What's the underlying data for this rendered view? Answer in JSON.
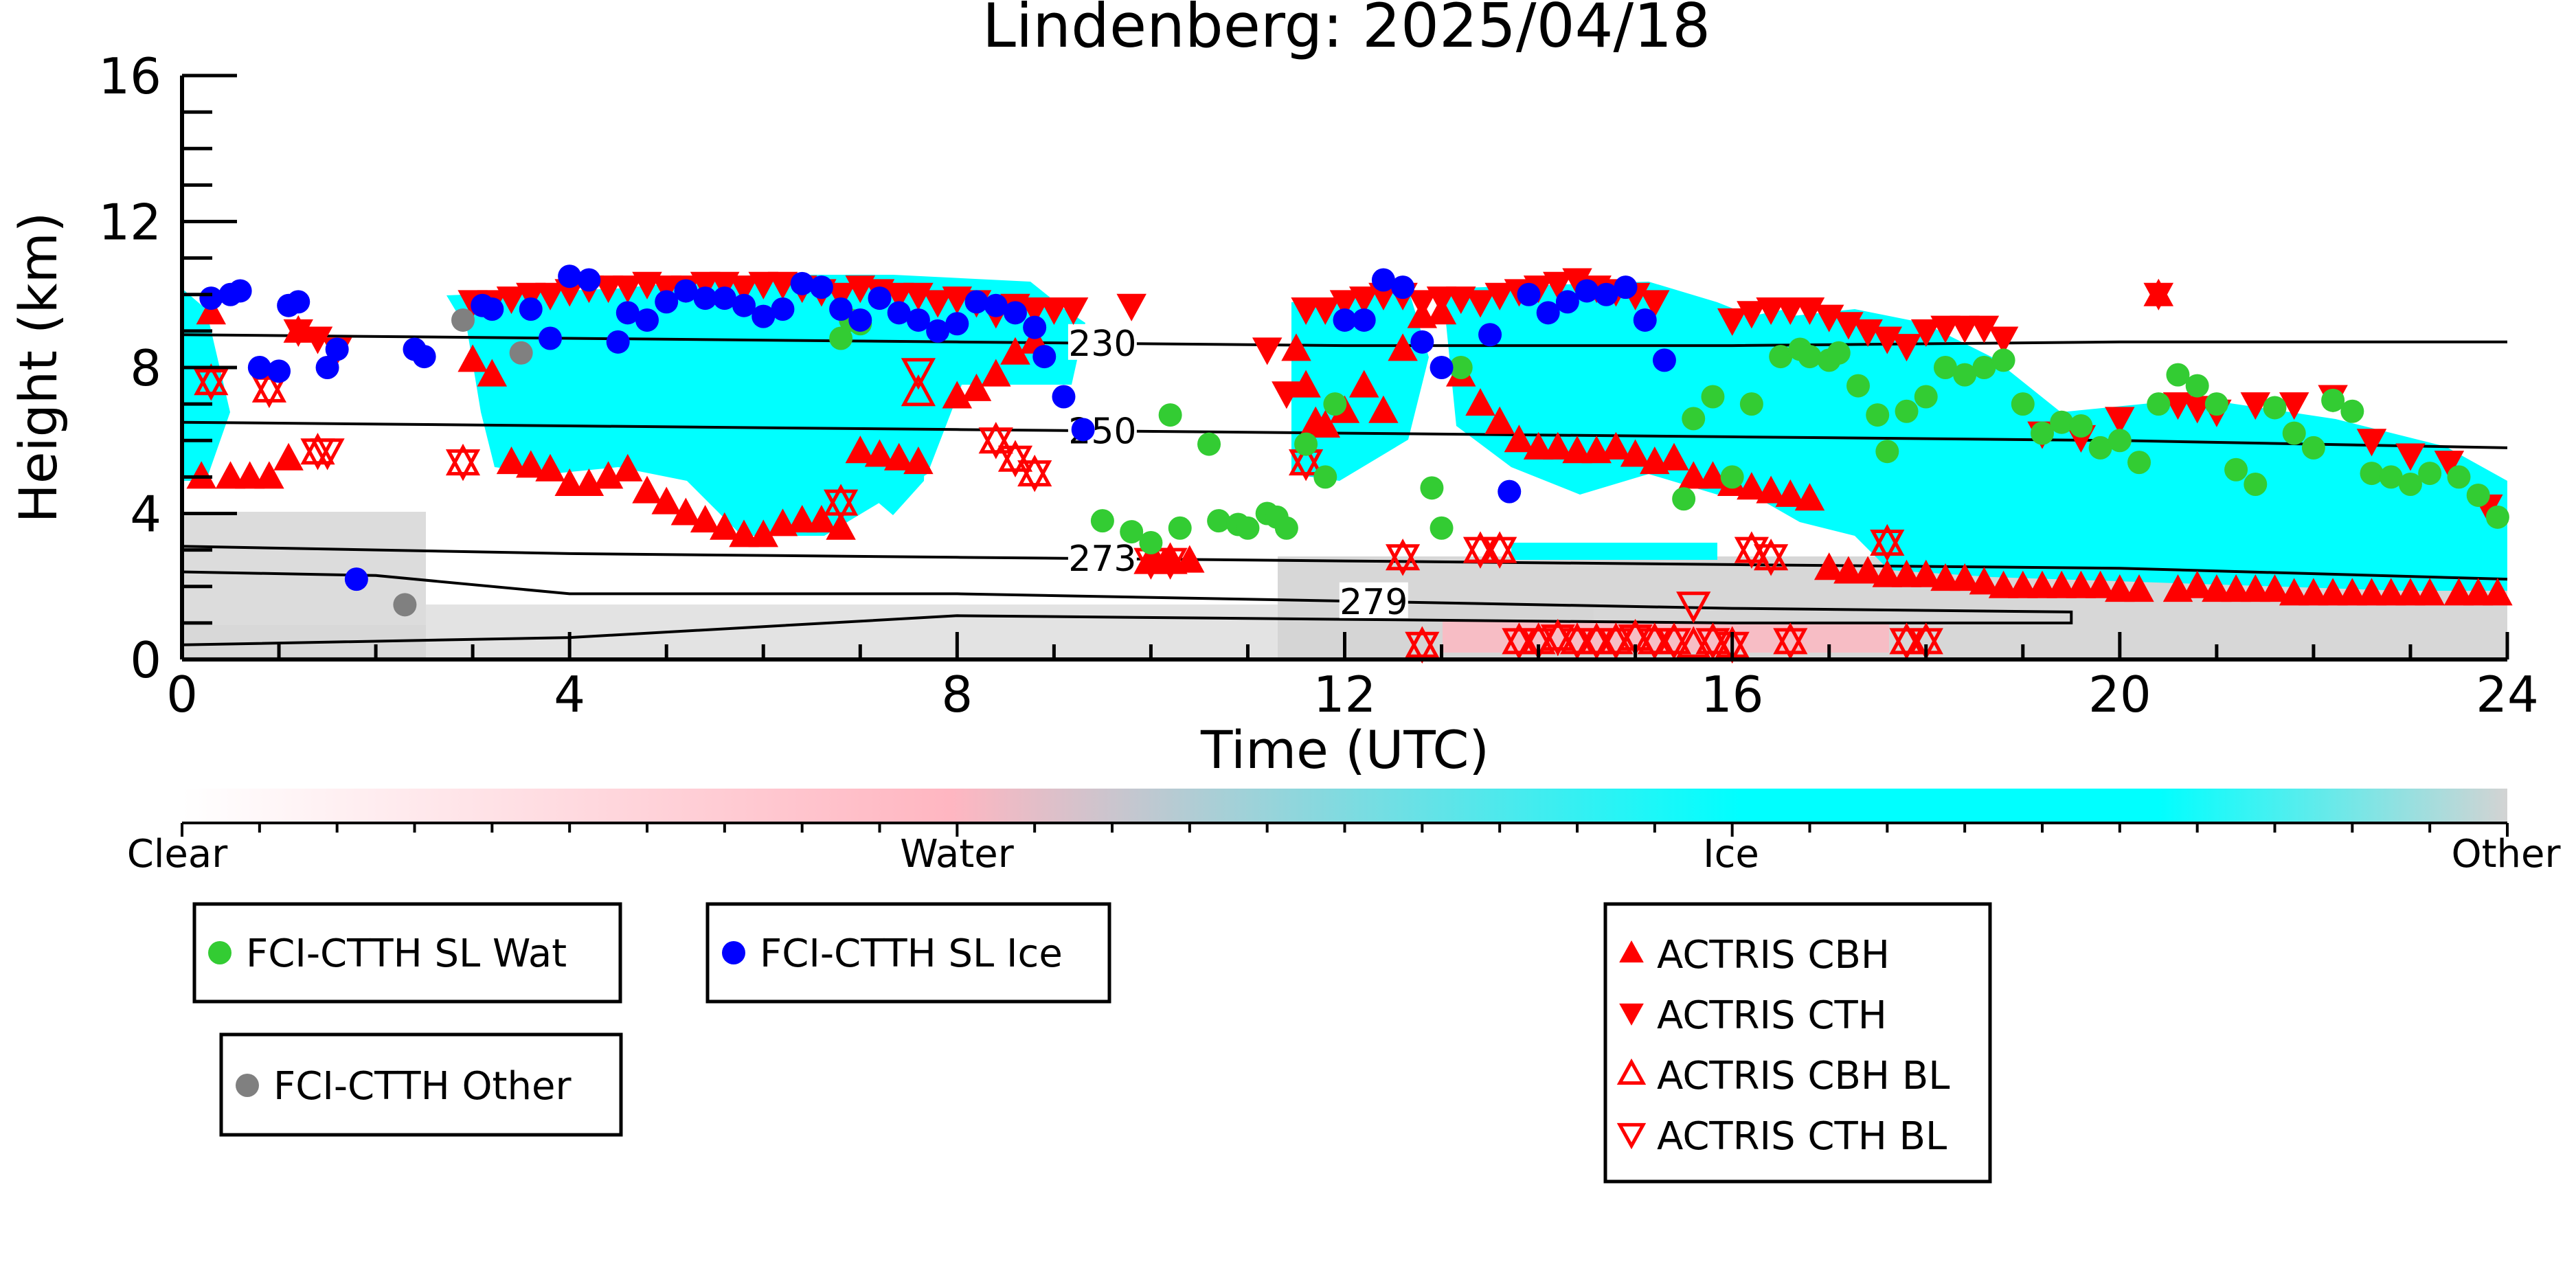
{
  "chart_data": {
    "type": "scatter",
    "title": "Lindenberg: 2025/04/18",
    "xlabel": "Time (UTC)",
    "ylabel": "Height (km)",
    "xlim": [
      0,
      24
    ],
    "ylim": [
      0,
      16
    ],
    "xticks": [
      0,
      4,
      8,
      12,
      16,
      20,
      24
    ],
    "yticks": [
      0,
      4,
      8,
      12,
      16
    ],
    "grid": false,
    "colorbar": {
      "labels": [
        "Clear",
        "Water",
        "Ice",
        "Other"
      ],
      "colors": [
        "#ffffff",
        "#ffb6c1",
        "#00ffff",
        "#d3d3d3"
      ]
    },
    "contours": [
      {
        "label": "230",
        "x": [
          0,
          4,
          8,
          12,
          16,
          20,
          24
        ],
        "y": [
          8.9,
          8.8,
          8.7,
          8.6,
          8.6,
          8.7,
          8.7
        ],
        "label_x": 9.5
      },
      {
        "label": "250",
        "x": [
          0,
          4,
          8,
          12,
          16,
          20,
          24
        ],
        "y": [
          6.5,
          6.4,
          6.3,
          6.2,
          6.1,
          6.0,
          5.8
        ],
        "label_x": 9.5
      },
      {
        "label": "273",
        "x": [
          0,
          4,
          8,
          12,
          16,
          20,
          24
        ],
        "y": [
          3.1,
          2.9,
          2.8,
          2.7,
          2.6,
          2.5,
          2.2
        ],
        "label_x": 9.5
      },
      {
        "label": "279",
        "x": [
          0,
          2,
          4,
          8,
          12,
          16,
          19.5,
          19.5,
          16,
          12,
          8,
          4,
          0
        ],
        "y": [
          2.4,
          2.3,
          1.8,
          1.8,
          1.6,
          1.4,
          1.3,
          1.0,
          1.0,
          1.1,
          1.2,
          0.6,
          0.4
        ],
        "label_x": 12.3
      }
    ],
    "series": [
      {
        "name": "FCI-CTTH SL Wat",
        "marker": "circle",
        "color": "#33cc33",
        "x": [
          6.8,
          6.9,
          7.0,
          9.5,
          9.8,
          10.0,
          10.2,
          10.3,
          10.6,
          10.7,
          10.9,
          11.0,
          11.2,
          11.3,
          11.4,
          11.6,
          11.8,
          11.9,
          12.9,
          13.0,
          13.2,
          15.5,
          15.6,
          15.8,
          16.0,
          16.2,
          16.5,
          16.7,
          16.8,
          17.0,
          17.1,
          17.3,
          17.5,
          17.6,
          17.8,
          18.0,
          18.2,
          18.4,
          18.6,
          18.8,
          19.0,
          19.2,
          19.4,
          19.6,
          19.8,
          20.0,
          20.2,
          20.4,
          20.6,
          20.8,
          21.0,
          21.2,
          21.4,
          21.6,
          21.8,
          22.0,
          22.2,
          22.4,
          22.6,
          22.8,
          23.0,
          23.2,
          23.5,
          23.7,
          23.9
        ],
        "y": [
          8.8,
          9.3,
          9.2,
          3.8,
          3.5,
          3.2,
          6.7,
          3.6,
          5.9,
          3.8,
          3.7,
          3.6,
          4.0,
          3.9,
          3.6,
          5.9,
          5.0,
          7.0,
          4.7,
          3.6,
          8.0,
          4.4,
          6.6,
          7.2,
          5.0,
          7.0,
          8.3,
          8.5,
          8.3,
          8.2,
          8.4,
          7.5,
          6.7,
          5.7,
          6.8,
          7.2,
          8.0,
          7.8,
          8.0,
          8.2,
          7.0,
          6.2,
          6.5,
          6.4,
          5.8,
          6.0,
          5.4,
          7.0,
          7.8,
          7.5,
          7.0,
          5.2,
          4.8,
          6.9,
          6.2,
          5.8,
          7.1,
          6.8,
          5.1,
          5.0,
          4.8,
          5.1,
          5.0,
          4.5,
          3.9
        ]
      },
      {
        "name": "FCI-CTTH SL Ice",
        "marker": "circle",
        "color": "#0000ff",
        "x": [
          0.3,
          0.5,
          0.6,
          0.8,
          1.0,
          1.1,
          1.2,
          1.5,
          1.6,
          1.8,
          2.4,
          2.5,
          3.1,
          3.2,
          3.6,
          3.8,
          4.0,
          4.2,
          4.5,
          4.6,
          4.8,
          5.0,
          5.2,
          5.4,
          5.6,
          5.8,
          6.0,
          6.2,
          6.4,
          6.6,
          6.8,
          7.0,
          7.2,
          7.4,
          7.6,
          7.8,
          8.0,
          8.2,
          8.4,
          8.6,
          8.8,
          8.9,
          9.1,
          9.3,
          12.0,
          12.2,
          12.4,
          12.6,
          12.8,
          13.0,
          13.5,
          13.7,
          13.9,
          14.1,
          14.3,
          14.5,
          14.7,
          14.9,
          15.1,
          15.3
        ],
        "y": [
          9.9,
          10.0,
          10.1,
          8.0,
          7.9,
          9.7,
          9.8,
          8.0,
          8.5,
          2.2,
          8.5,
          8.3,
          9.7,
          9.6,
          9.6,
          8.8,
          10.5,
          10.4,
          8.7,
          9.5,
          9.3,
          9.8,
          10.1,
          9.9,
          9.9,
          9.7,
          9.4,
          9.6,
          10.3,
          10.2,
          9.6,
          9.3,
          9.9,
          9.5,
          9.3,
          9.0,
          9.2,
          9.8,
          9.7,
          9.5,
          9.1,
          8.3,
          7.2,
          6.3,
          9.3,
          9.3,
          10.4,
          10.2,
          8.7,
          8.0,
          8.9,
          4.6,
          10.0,
          9.5,
          9.8,
          10.1,
          10.0,
          10.2,
          9.3,
          8.2
        ]
      },
      {
        "name": "FCI-CTTH Other",
        "marker": "circle",
        "color": "#808080",
        "x": [
          2.3,
          2.9,
          3.5
        ],
        "y": [
          1.5,
          9.3,
          8.4
        ]
      },
      {
        "name": "ACTRIS CBH",
        "marker": "triangle-up",
        "color": "#ff0000",
        "x": [
          0.2,
          0.3,
          0.5,
          0.7,
          0.9,
          1.1,
          1.2,
          3.0,
          3.2,
          3.4,
          3.6,
          3.8,
          4.0,
          4.2,
          4.4,
          4.6,
          4.8,
          5.0,
          5.2,
          5.4,
          5.6,
          5.8,
          6.0,
          6.2,
          6.4,
          6.6,
          6.8,
          7.0,
          7.2,
          7.4,
          7.6,
          8.0,
          8.2,
          8.4,
          8.6,
          8.8,
          10.0,
          10.2,
          10.4,
          11.5,
          11.6,
          11.7,
          11.8,
          12.0,
          12.2,
          12.4,
          12.6,
          12.8,
          13.0,
          13.2,
          13.4,
          13.6,
          13.8,
          14.0,
          14.2,
          14.4,
          14.6,
          14.8,
          15.0,
          15.2,
          15.4,
          15.6,
          15.8,
          16.0,
          16.2,
          16.4,
          16.6,
          16.8,
          17.0,
          17.2,
          17.4,
          17.6,
          17.8,
          18.0,
          18.2,
          18.4,
          18.6,
          18.8,
          19.0,
          19.2,
          19.4,
          19.6,
          19.8,
          20.0,
          20.2,
          20.4,
          20.6,
          20.8,
          21.0,
          21.2,
          21.4,
          21.6,
          21.8,
          22.0,
          22.2,
          22.4,
          22.6,
          22.8,
          23.0,
          23.2,
          23.5,
          23.7,
          23.9
        ],
        "y": [
          5.0,
          9.5,
          5.0,
          5.0,
          5.0,
          5.5,
          9.0,
          8.2,
          7.8,
          5.4,
          5.3,
          5.2,
          4.8,
          4.8,
          5.0,
          5.2,
          4.6,
          4.3,
          4.0,
          3.8,
          3.6,
          3.4,
          3.4,
          3.7,
          3.8,
          3.8,
          3.6,
          5.7,
          5.6,
          5.5,
          5.4,
          7.2,
          7.4,
          7.8,
          8.4,
          8.7,
          2.7,
          2.7,
          2.7,
          8.5,
          7.5,
          6.5,
          6.4,
          6.8,
          7.5,
          6.8,
          8.5,
          9.4,
          9.5,
          7.8,
          7.0,
          6.5,
          6.0,
          5.8,
          5.8,
          5.7,
          5.7,
          5.8,
          5.6,
          5.4,
          5.5,
          5.0,
          5.0,
          4.8,
          4.7,
          4.6,
          4.5,
          4.4,
          2.5,
          2.4,
          2.4,
          2.3,
          2.3,
          2.3,
          2.2,
          2.2,
          2.1,
          2.0,
          2.0,
          2.0,
          2.0,
          2.0,
          2.0,
          1.9,
          1.9,
          10.0,
          1.9,
          2.0,
          1.9,
          1.9,
          1.9,
          1.9,
          1.8,
          1.8,
          1.8,
          1.8,
          1.8,
          1.8,
          1.8,
          1.8,
          1.8,
          1.8,
          1.8
        ]
      },
      {
        "name": "ACTRIS CTH",
        "marker": "triangle-down",
        "color": "#ff0000",
        "x": [
          1.2,
          1.4,
          1.6,
          3.0,
          3.2,
          3.4,
          3.6,
          3.8,
          4.0,
          4.2,
          4.4,
          4.6,
          4.8,
          5.0,
          5.2,
          5.4,
          5.6,
          5.8,
          6.0,
          6.2,
          6.4,
          6.6,
          6.8,
          7.0,
          7.2,
          7.4,
          7.6,
          7.8,
          8.0,
          8.2,
          8.4,
          8.6,
          8.8,
          9.0,
          9.2,
          9.8,
          11.2,
          11.4,
          11.6,
          11.8,
          12.0,
          12.2,
          12.4,
          12.6,
          12.8,
          13.0,
          13.2,
          13.4,
          13.6,
          13.8,
          14.0,
          14.2,
          14.4,
          14.6,
          14.8,
          15.0,
          15.2,
          16.0,
          16.2,
          16.4,
          16.6,
          16.8,
          17.0,
          17.2,
          17.4,
          17.6,
          17.8,
          18.0,
          18.2,
          18.4,
          18.6,
          18.8,
          19.2,
          19.6,
          20.0,
          20.4,
          20.6,
          20.8,
          21.0,
          21.4,
          21.8,
          22.2,
          22.6,
          23.0,
          23.4,
          23.8
        ],
        "y": [
          9.0,
          8.8,
          8.5,
          9.8,
          9.8,
          9.9,
          10.0,
          10.0,
          10.1,
          10.2,
          10.2,
          10.2,
          10.3,
          10.2,
          10.2,
          10.3,
          10.3,
          10.2,
          10.3,
          10.3,
          10.2,
          10.1,
          10.0,
          10.2,
          10.1,
          10.0,
          10.0,
          9.8,
          9.9,
          9.8,
          9.5,
          9.7,
          9.6,
          9.6,
          9.6,
          9.7,
          8.5,
          7.3,
          9.6,
          9.6,
          9.8,
          9.9,
          10.0,
          10.0,
          9.8,
          9.9,
          9.9,
          9.8,
          10.0,
          10.1,
          10.2,
          10.3,
          10.4,
          10.2,
          10.1,
          10.0,
          9.8,
          9.3,
          9.5,
          9.6,
          9.6,
          9.6,
          9.4,
          9.2,
          9.0,
          8.8,
          8.6,
          9.0,
          9.1,
          9.1,
          9.1,
          8.8,
          6.2,
          6.1,
          6.6,
          10.0,
          7.0,
          6.9,
          6.8,
          7.0,
          7.0,
          7.2,
          6.0,
          5.6,
          5.4,
          4.2
        ]
      },
      {
        "name": "ACTRIS CBH BL",
        "marker": "triangle-up-open",
        "color": "#ff0000",
        "x": [
          0.3,
          0.9,
          1.4,
          2.9,
          6.8,
          7.6,
          8.4,
          8.6,
          8.8,
          10.0,
          10.2,
          11.6,
          12.6,
          12.8,
          13.4,
          13.6,
          13.8,
          14.0,
          14.2,
          14.4,
          14.6,
          14.8,
          15.0,
          15.2,
          15.4,
          15.6,
          15.8,
          16.0,
          16.2,
          16.4,
          16.6,
          17.6,
          17.8,
          18.0
        ],
        "y": [
          7.6,
          7.4,
          5.7,
          5.4,
          4.3,
          7.3,
          6.0,
          5.5,
          5.1,
          2.7,
          2.7,
          5.4,
          2.8,
          0.4,
          3.0,
          3.0,
          0.5,
          0.5,
          0.6,
          0.5,
          0.5,
          0.5,
          0.6,
          0.5,
          0.5,
          0.4,
          0.5,
          0.4,
          3.0,
          2.8,
          0.5,
          3.2,
          0.5,
          0.5
        ]
      },
      {
        "name": "ACTRIS CTH BL",
        "marker": "triangle-down-open",
        "color": "#ff0000",
        "x": [
          0.3,
          0.9,
          1.4,
          1.5,
          2.9,
          6.8,
          7.6,
          8.4,
          8.6,
          8.8,
          10.0,
          10.2,
          11.6,
          12.6,
          12.8,
          13.4,
          13.6,
          13.8,
          14.0,
          14.2,
          14.4,
          14.6,
          14.8,
          15.0,
          15.2,
          15.4,
          15.6,
          15.8,
          16.0,
          16.2,
          16.4,
          16.6,
          17.6,
          17.8,
          18.0
        ],
        "y": [
          7.6,
          7.4,
          5.7,
          5.7,
          5.4,
          4.3,
          7.9,
          6.0,
          5.5,
          5.1,
          2.7,
          2.7,
          5.4,
          2.8,
          0.4,
          3.0,
          3.0,
          0.5,
          0.5,
          0.6,
          0.5,
          0.5,
          0.5,
          0.6,
          0.5,
          0.5,
          1.5,
          0.5,
          0.4,
          3.0,
          2.8,
          0.5,
          3.2,
          0.5,
          0.5
        ]
      }
    ],
    "legend": [
      {
        "group": "wat",
        "items": [
          "FCI-CTTH SL Wat"
        ]
      },
      {
        "group": "ice",
        "items": [
          "FCI-CTTH SL Ice"
        ]
      },
      {
        "group": "other",
        "items": [
          "FCI-CTTH Other"
        ]
      },
      {
        "group": "actris",
        "items": [
          "ACTRIS CBH",
          "ACTRIS CTH",
          "ACTRIS CBH BL",
          "ACTRIS CTH BL"
        ]
      }
    ]
  }
}
